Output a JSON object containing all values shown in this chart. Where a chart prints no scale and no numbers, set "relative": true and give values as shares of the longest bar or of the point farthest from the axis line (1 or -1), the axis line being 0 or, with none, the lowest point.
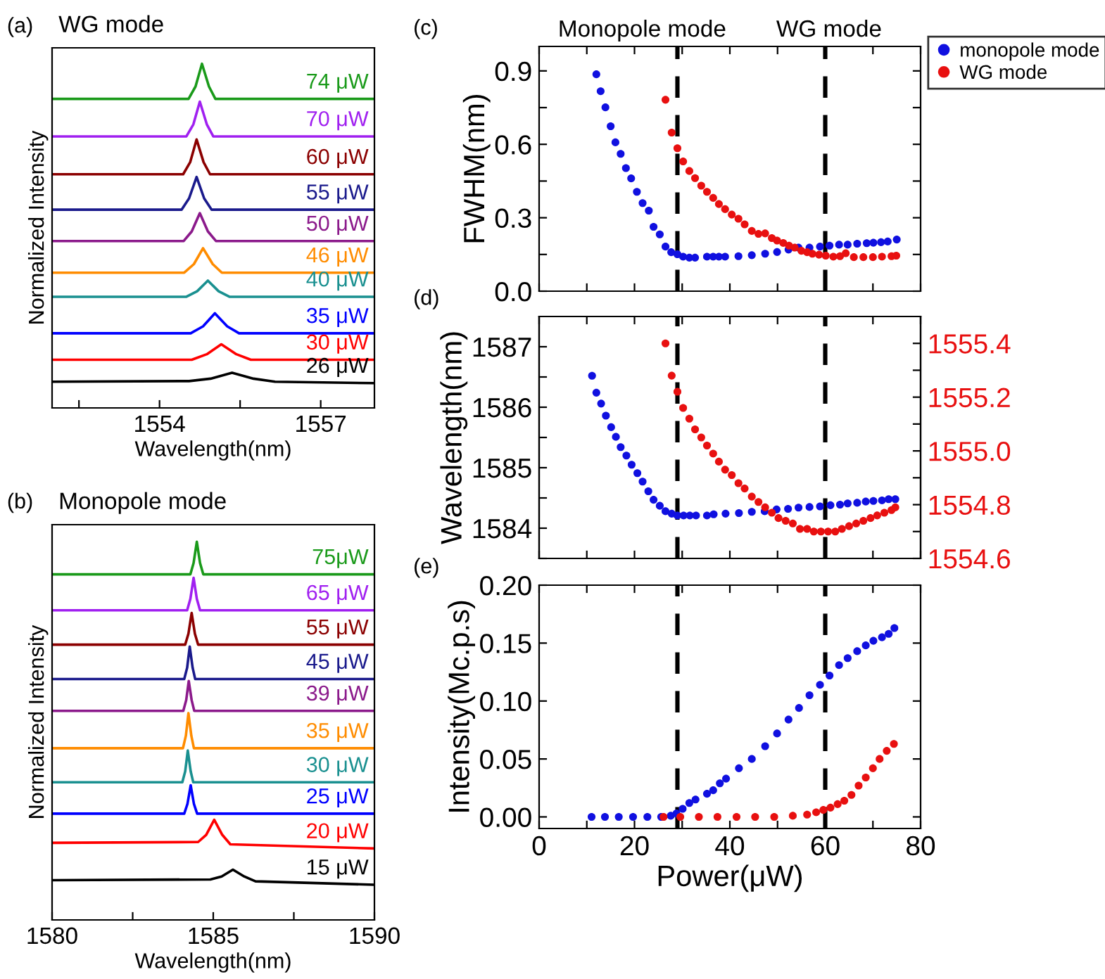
{
  "chart_data": [
    {
      "type": "line",
      "title": "WG mode",
      "xlabel": "Wavelength(nm)",
      "ylabel": "Normalized Intensity",
      "annotations": [
        "(a)"
      ],
      "relative": true,
      "legend": false,
      "grid": false,
      "tick_labels": "x",
      "xlim": [
        1552,
        1558
      ],
      "xticks": [
        {
          "value": 1552.5,
          "label": null
        },
        1554,
        {
          "value": 1555.5,
          "label": null
        },
        1557
      ],
      "series": [
        {
          "name": "74 μW",
          "color": "#1a9a1a",
          "x": [
            1552,
            1554.54,
            1554.67,
            1554.79,
            1554.92,
            1555.04,
            1558
          ],
          "values": [
            0.898,
            0.898,
            0.934,
            1.0,
            0.934,
            0.898,
            0.898
          ]
        },
        {
          "name": "70 μW",
          "color": "#a020f0",
          "x": [
            1552,
            1554.5,
            1554.63,
            1554.75,
            1554.88,
            1555.0,
            1558
          ],
          "values": [
            0.789,
            0.789,
            0.824,
            0.89,
            0.824,
            0.789,
            0.789
          ]
        },
        {
          "name": "60 μW",
          "color": "#8b0000",
          "x": [
            1552,
            1554.44,
            1554.57,
            1554.69,
            1554.82,
            1554.94,
            1558
          ],
          "values": [
            0.679,
            0.679,
            0.714,
            0.78,
            0.714,
            0.679,
            0.679
          ]
        },
        {
          "name": "55 μW",
          "color": "#1a1a8c",
          "x": [
            1552,
            1554.41,
            1554.55,
            1554.69,
            1554.83,
            1554.97,
            1558
          ],
          "values": [
            0.576,
            0.576,
            0.609,
            0.671,
            0.609,
            0.576,
            0.576
          ]
        },
        {
          "name": "50 μW",
          "color": "#8b1a8b",
          "x": [
            1552,
            1554.45,
            1554.6,
            1554.75,
            1554.9,
            1555.05,
            1558
          ],
          "values": [
            0.485,
            0.485,
            0.513,
            0.566,
            0.513,
            0.485,
            0.485
          ]
        },
        {
          "name": "46 μW",
          "color": "#ff8c00",
          "x": [
            1552,
            1554.46,
            1554.64,
            1554.81,
            1554.99,
            1555.16,
            1558
          ],
          "values": [
            0.393,
            0.393,
            0.418,
            0.464,
            0.418,
            0.393,
            0.393
          ]
        },
        {
          "name": "40 μW",
          "color": "#1a9090",
          "x": [
            1552,
            1554.5,
            1554.7,
            1554.9,
            1555.1,
            1555.3,
            1558
          ],
          "values": [
            0.323,
            0.323,
            0.339,
            0.37,
            0.339,
            0.323,
            0.323
          ]
        },
        {
          "name": "35 μW",
          "color": "#0000ff",
          "x": [
            1552,
            1554.58,
            1554.81,
            1555.03,
            1555.26,
            1555.48,
            1558
          ],
          "values": [
            0.217,
            0.217,
            0.237,
            0.275,
            0.237,
            0.217,
            0.217
          ]
        },
        {
          "name": "30 μW",
          "color": "#ff0000",
          "x": [
            1552,
            1554.6,
            1554.88,
            1555.15,
            1555.43,
            1555.7,
            1558
          ],
          "values": [
            0.14,
            0.14,
            0.156,
            0.185,
            0.156,
            0.14,
            0.14
          ]
        },
        {
          "name": "26 μW",
          "color": "#000000",
          "x": [
            1552,
            1554.55,
            1554.95,
            1555.35,
            1555.75,
            1556.15,
            1558
          ],
          "values": [
            0.076,
            0.078,
            0.085,
            0.102,
            0.085,
            0.076,
            0.072
          ]
        }
      ]
    },
    {
      "type": "line",
      "title": "Monopole mode",
      "xlabel": "Wavelength(nm)",
      "ylabel": "Normalized Intensity",
      "annotations": [
        "(b)"
      ],
      "relative": true,
      "legend": false,
      "grid": false,
      "tick_labels": "x",
      "xlim": [
        1580,
        1590
      ],
      "xticks": [
        1580,
        {
          "value": 1582.5,
          "label": null
        },
        1585,
        {
          "value": 1587.5,
          "label": null
        },
        1590
      ],
      "series": [
        {
          "name": "75μW",
          "color": "#1a9a1a",
          "x": [
            1580,
            1584.29,
            1584.39,
            1584.49,
            1584.59,
            1584.69,
            1590
          ],
          "values": [
            0.914,
            0.914,
            0.944,
            1.0,
            0.944,
            0.914,
            0.914
          ]
        },
        {
          "name": "65 μW",
          "color": "#a020f0",
          "x": [
            1580,
            1584.19,
            1584.29,
            1584.39,
            1584.49,
            1584.59,
            1590
          ],
          "values": [
            0.819,
            0.819,
            0.849,
            0.905,
            0.849,
            0.819,
            0.819
          ]
        },
        {
          "name": "55 μW",
          "color": "#8b0000",
          "x": [
            1580,
            1584.13,
            1584.23,
            1584.33,
            1584.43,
            1584.53,
            1590
          ],
          "values": [
            0.728,
            0.728,
            0.757,
            0.812,
            0.757,
            0.728,
            0.728
          ]
        },
        {
          "name": "45 μW",
          "color": "#1a1a8c",
          "x": [
            1580,
            1584.1,
            1584.19,
            1584.27,
            1584.36,
            1584.44,
            1590
          ],
          "values": [
            0.637,
            0.637,
            0.667,
            0.723,
            0.667,
            0.637,
            0.637
          ]
        },
        {
          "name": "39 μW",
          "color": "#8b1a8b",
          "x": [
            1580,
            1584.07,
            1584.16,
            1584.24,
            1584.33,
            1584.41,
            1590
          ],
          "values": [
            0.553,
            0.553,
            0.581,
            0.632,
            0.581,
            0.553,
            0.553
          ]
        },
        {
          "name": "35 μW",
          "color": "#ff8c00",
          "x": [
            1580,
            1584.06,
            1584.15,
            1584.23,
            1584.32,
            1584.4,
            1590
          ],
          "values": [
            0.454,
            0.454,
            0.487,
            0.547,
            0.487,
            0.454,
            0.454
          ]
        },
        {
          "name": "30 μW",
          "color": "#1a9090",
          "x": [
            1580,
            1584.04,
            1584.13,
            1584.21,
            1584.3,
            1584.38,
            1590
          ],
          "values": [
            0.364,
            0.364,
            0.393,
            0.448,
            0.393,
            0.364,
            0.364
          ]
        },
        {
          "name": "25 μW",
          "color": "#0000ff",
          "x": [
            1580,
            1584.1,
            1584.2,
            1584.3,
            1584.4,
            1584.5,
            1590
          ],
          "values": [
            0.281,
            0.281,
            0.307,
            0.356,
            0.307,
            0.281,
            0.281
          ]
        },
        {
          "name": "20 μW",
          "color": "#ff0000",
          "x": [
            1580,
            1584.53,
            1584.78,
            1585.03,
            1585.28,
            1585.53,
            1590
          ],
          "values": [
            0.204,
            0.206,
            0.225,
            0.265,
            0.225,
            0.2,
            0.189
          ]
        },
        {
          "name": "15 μW",
          "color": "#000000",
          "x": [
            1580,
            1584.91,
            1585.26,
            1585.61,
            1585.96,
            1586.31,
            1590
          ],
          "values": [
            0.105,
            0.107,
            0.115,
            0.133,
            0.115,
            0.102,
            0.093
          ]
        }
      ]
    },
    {
      "type": "scatter",
      "ylabel": "FWHM(nm)",
      "annotations": [
        "(c)",
        "Monopole mode",
        "WG mode"
      ],
      "legend": "top right",
      "grid": false,
      "marker": "circle",
      "tick_labels": "y",
      "xlim": [
        0,
        80
      ],
      "xticks": [
        0,
        {
          "value": 10,
          "label": null
        },
        20,
        {
          "value": 30,
          "label": null
        },
        40,
        {
          "value": 50,
          "label": null
        },
        60,
        {
          "value": 70,
          "label": null
        },
        80
      ],
      "ylim": [
        0.0,
        1.0
      ],
      "yticks": [
        {
          "value": 0,
          "label": "0.0"
        },
        {
          "value": 0.15,
          "label": null
        },
        0.3,
        {
          "value": 0.45,
          "label": null
        },
        0.6,
        {
          "value": 0.75,
          "label": null
        },
        0.9
      ],
      "ref_lines": [
        {
          "axis": "x",
          "value": 29,
          "color": "#000000",
          "line_style": "dashed"
        },
        {
          "axis": "x",
          "value": 60,
          "color": "#000000",
          "line_style": "dashed"
        }
      ],
      "series": [
        {
          "name": "monopole mode",
          "color": "#1010e0",
          "x": [
            12.0,
            12.9,
            13.9,
            15.0,
            16.0,
            17.1,
            18.2,
            19.3,
            20.5,
            21.7,
            23.0,
            24.0,
            25.3,
            26.5,
            27.7,
            29.0,
            30.2,
            31.5,
            32.7,
            35.2,
            36.5,
            37.7,
            39.0,
            41.8,
            44.6,
            47.4,
            49.9,
            52.3,
            54.4,
            56.7,
            58.9,
            60.9,
            62.9,
            64.7,
            66.7,
            68.7,
            70.1,
            71.7,
            73.1,
            75.0
          ],
          "values": [
            0.886,
            0.817,
            0.751,
            0.674,
            0.608,
            0.561,
            0.503,
            0.461,
            0.406,
            0.36,
            0.329,
            0.263,
            0.232,
            0.182,
            0.159,
            0.151,
            0.141,
            0.137,
            0.137,
            0.141,
            0.141,
            0.141,
            0.141,
            0.143,
            0.147,
            0.153,
            0.16,
            0.17,
            0.178,
            0.178,
            0.182,
            0.186,
            0.19,
            0.19,
            0.194,
            0.196,
            0.198,
            0.2,
            0.203,
            0.211
          ]
        },
        {
          "name": "WG mode",
          "color": "#e81010",
          "x": [
            26.5,
            27.8,
            29.0,
            30.2,
            31.5,
            32.7,
            34.0,
            35.2,
            36.5,
            37.7,
            39.0,
            40.4,
            41.8,
            43.1,
            44.6,
            46.0,
            47.4,
            48.8,
            49.9,
            51.2,
            52.4,
            53.6,
            55.0,
            56.2,
            57.3,
            58.7,
            60.1,
            61.7,
            63.1,
            64.3,
            66.0,
            68.0,
            70.0,
            71.9,
            73.9,
            74.9
          ],
          "values": [
            0.782,
            0.648,
            0.584,
            0.53,
            0.491,
            0.462,
            0.431,
            0.406,
            0.381,
            0.356,
            0.335,
            0.313,
            0.296,
            0.273,
            0.246,
            0.234,
            0.236,
            0.217,
            0.207,
            0.197,
            0.186,
            0.178,
            0.165,
            0.159,
            0.153,
            0.149,
            0.145,
            0.141,
            0.143,
            0.155,
            0.139,
            0.139,
            0.139,
            0.141,
            0.143,
            0.145
          ]
        }
      ]
    },
    {
      "type": "scatter",
      "ylabel": "Wavelength(nm)",
      "annotations": [
        "(d)"
      ],
      "grid": false,
      "marker": "circle",
      "tick_labels": "y",
      "xlim": [
        0,
        80
      ],
      "xticks": [
        0,
        {
          "value": 10,
          "label": null
        },
        20,
        {
          "value": 30,
          "label": null
        },
        40,
        {
          "value": 50,
          "label": null
        },
        60,
        {
          "value": 70,
          "label": null
        },
        80
      ],
      "ylim": [
        1583.5,
        1587.5
      ],
      "yticks": [
        {
          "value": 1583.5,
          "label": null
        },
        1584,
        {
          "value": 1584.5,
          "label": null
        },
        1585,
        {
          "value": 1585.5,
          "label": null
        },
        1586,
        {
          "value": 1586.5,
          "label": null
        },
        1587
      ],
      "y2lim": [
        1554.6,
        1555.5
      ],
      "y2ticks": [
        1554.6,
        {
          "value": 1554.7,
          "label": null
        },
        1554.8,
        {
          "value": 1554.9,
          "label": null
        },
        {
          "value": 1555,
          "label": "1555.0"
        },
        {
          "value": 1555.1,
          "label": null
        },
        1555.2,
        {
          "value": 1555.3,
          "label": null
        },
        1555.4
      ],
      "ref_lines": [
        {
          "axis": "x",
          "value": 29,
          "color": "#000000",
          "line_style": "dashed"
        },
        {
          "axis": "x",
          "value": 60,
          "color": "#000000",
          "line_style": "dashed"
        }
      ],
      "series": [
        {
          "color": "#1010e0",
          "x": [
            11.1,
            12.0,
            13.0,
            14.0,
            15.1,
            16.1,
            17.1,
            18.3,
            19.4,
            20.6,
            21.7,
            22.9,
            24.0,
            25.3,
            26.5,
            27.8,
            29.0,
            30.3,
            31.6,
            32.9,
            35.2,
            36.6,
            39.1,
            41.9,
            44.6,
            47.3,
            49.8,
            52.2,
            54.4,
            56.7,
            58.9,
            61.1,
            63.1,
            64.7,
            66.7,
            68.5,
            70.1,
            71.9,
            73.3,
            74.7
          ],
          "values": [
            1586.52,
            1586.24,
            1586.06,
            1585.86,
            1585.67,
            1585.51,
            1585.34,
            1585.2,
            1585.05,
            1584.91,
            1584.77,
            1584.61,
            1584.47,
            1584.37,
            1584.28,
            1584.24,
            1584.21,
            1584.21,
            1584.21,
            1584.21,
            1584.21,
            1584.23,
            1584.24,
            1584.25,
            1584.27,
            1584.28,
            1584.31,
            1584.32,
            1584.34,
            1584.35,
            1584.36,
            1584.38,
            1584.39,
            1584.41,
            1584.42,
            1584.44,
            1584.45,
            1584.46,
            1584.48,
            1584.48
          ]
        },
        {
          "color": "#e81010",
          "axis": "y2",
          "x": [
            26.5,
            27.8,
            29.0,
            30.2,
            31.5,
            32.7,
            34.0,
            35.2,
            36.5,
            37.7,
            39.0,
            40.4,
            41.8,
            43.1,
            44.6,
            46.0,
            47.4,
            48.8,
            50.2,
            51.7,
            53.2,
            54.7,
            56.2,
            57.6,
            59.1,
            60.6,
            62.1,
            63.5,
            65.0,
            66.5,
            68.0,
            69.5,
            70.9,
            72.4,
            73.9,
            74.7
          ],
          "values": [
            1555.4,
            1555.28,
            1555.22,
            1555.16,
            1555.12,
            1555.08,
            1555.05,
            1555.02,
            1554.99,
            1554.96,
            1554.93,
            1554.91,
            1554.88,
            1554.86,
            1554.83,
            1554.81,
            1554.79,
            1554.77,
            1554.75,
            1554.74,
            1554.73,
            1554.71,
            1554.71,
            1554.7,
            1554.7,
            1554.7,
            1554.7,
            1554.71,
            1554.72,
            1554.73,
            1554.74,
            1554.75,
            1554.76,
            1554.77,
            1554.78,
            1554.79
          ]
        }
      ]
    },
    {
      "type": "scatter",
      "xlabel": "Power(μW)",
      "ylabel": "Intensity(Mc.p.s)",
      "annotations": [
        "(e)"
      ],
      "grid": false,
      "marker": "circle",
      "xlim": [
        0,
        80
      ],
      "xticks": [
        0,
        {
          "value": 10,
          "label": null
        },
        20,
        {
          "value": 30,
          "label": null
        },
        40,
        {
          "value": 50,
          "label": null
        },
        60,
        {
          "value": 70,
          "label": null
        },
        80
      ],
      "ylim": [
        -0.01,
        0.2
      ],
      "yticks": [
        {
          "value": 0,
          "label": "0.00"
        },
        {
          "value": 0.05,
          "label": "0.05"
        },
        {
          "value": 0.1,
          "label": "0.10"
        },
        {
          "value": 0.15,
          "label": "0.15"
        },
        {
          "value": 0.2,
          "label": "0.20"
        }
      ],
      "ref_lines": [
        {
          "axis": "x",
          "value": 29,
          "color": "#000000",
          "line_style": "dashed"
        },
        {
          "axis": "x",
          "value": 60,
          "color": "#000000",
          "line_style": "dashed"
        }
      ],
      "series": [
        {
          "color": "#1010e0",
          "x": [
            11.0,
            13.8,
            16.7,
            19.7,
            22.7,
            25.6,
            27.6,
            28.8,
            30.1,
            31.5,
            32.8,
            35.2,
            36.5,
            37.9,
            39.2,
            41.9,
            44.6,
            47.4,
            49.9,
            52.3,
            54.5,
            56.7,
            58.9,
            60.9,
            62.9,
            64.7,
            66.7,
            68.5,
            70.1,
            71.9,
            73.3,
            74.5
          ],
          "values": [
            0,
            0,
            0,
            0,
            0,
            0,
            0.001,
            0.003,
            0.007,
            0.012,
            0.015,
            0.02,
            0.023,
            0.029,
            0.033,
            0.042,
            0.05,
            0.061,
            0.072,
            0.084,
            0.094,
            0.105,
            0.114,
            0.122,
            0.131,
            0.137,
            0.143,
            0.148,
            0.152,
            0.155,
            0.158,
            0.163
          ]
        },
        {
          "color": "#e81010",
          "x": [
            26.1,
            29.6,
            33.5,
            37.4,
            41.4,
            45.3,
            49.3,
            53.2,
            56.2,
            58.1,
            59.6,
            61.1,
            62.6,
            64.0,
            65.5,
            67.0,
            68.5,
            70.0,
            71.4,
            72.9,
            74.4
          ],
          "values": [
            0,
            0,
            0,
            0,
            0,
            0,
            0,
            0.001,
            0.002,
            0.004,
            0.006,
            0.008,
            0.011,
            0.014,
            0.019,
            0.027,
            0.034,
            0.042,
            0.05,
            0.057,
            0.063
          ]
        }
      ]
    }
  ]
}
